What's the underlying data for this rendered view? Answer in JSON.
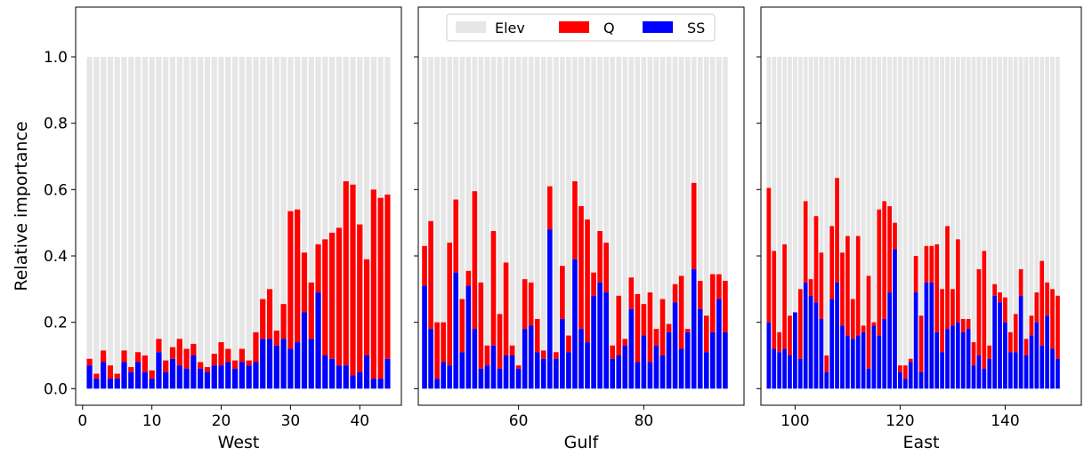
{
  "figure": {
    "ylabel": "Relative importance",
    "legend": [
      {
        "label": "Elev",
        "color": "#e6e6e6"
      },
      {
        "label": "Q",
        "color": "#ff0000"
      },
      {
        "label": "SS",
        "color": "#0000ff"
      }
    ],
    "legend_location": "top-center of middle panel"
  },
  "chart_data": [
    {
      "type": "bar",
      "stacked": true,
      "xlabel": "West",
      "ylabel": "Relative importance",
      "ylim": [
        -0.05,
        1.15
      ],
      "xlim": [
        -1,
        46
      ],
      "xticks": [
        0,
        10,
        20,
        30,
        40
      ],
      "yticks": [
        0.0,
        0.2,
        0.4,
        0.6,
        0.8,
        1.0
      ],
      "x_start": 1,
      "ss": [
        0.07,
        0.03,
        0.08,
        0.03,
        0.03,
        0.08,
        0.05,
        0.08,
        0.05,
        0.03,
        0.11,
        0.05,
        0.09,
        0.07,
        0.06,
        0.1,
        0.06,
        0.05,
        0.07,
        0.07,
        0.08,
        0.06,
        0.08,
        0.07,
        0.08,
        0.15,
        0.15,
        0.13,
        0.15,
        0.12,
        0.14,
        0.23,
        0.15,
        0.29,
        0.1,
        0.09,
        0.07,
        0.07,
        0.04,
        0.05,
        0.1,
        0.03,
        0.03,
        0.09
      ],
      "total": [
        0.09,
        0.045,
        0.115,
        0.07,
        0.045,
        0.115,
        0.065,
        0.11,
        0.1,
        0.055,
        0.15,
        0.085,
        0.125,
        0.15,
        0.12,
        0.135,
        0.08,
        0.065,
        0.105,
        0.14,
        0.12,
        0.085,
        0.12,
        0.085,
        0.17,
        0.27,
        0.3,
        0.175,
        0.255,
        0.535,
        0.54,
        0.41,
        0.32,
        0.435,
        0.45,
        0.47,
        0.485,
        0.625,
        0.615,
        0.495,
        0.39,
        0.6,
        0.575,
        0.585
      ],
      "elev": 1.0,
      "series": [
        {
          "name": "Elev",
          "color": "#e6e6e6"
        },
        {
          "name": "Q",
          "color": "#ff0000"
        },
        {
          "name": "SS",
          "color": "#0000ff"
        }
      ]
    },
    {
      "type": "bar",
      "stacked": true,
      "xlabel": "Gulf",
      "ylim": [
        -0.05,
        1.15
      ],
      "xlim": [
        44,
        96
      ],
      "xticks": [
        60,
        80
      ],
      "x_start": 45,
      "ss": [
        0.31,
        0.18,
        0.03,
        0.08,
        0.07,
        0.35,
        0.11,
        0.31,
        0.18,
        0.06,
        0.07,
        0.13,
        0.06,
        0.1,
        0.1,
        0.06,
        0.18,
        0.19,
        0.11,
        0.09,
        0.48,
        0.09,
        0.21,
        0.11,
        0.39,
        0.18,
        0.14,
        0.28,
        0.32,
        0.29,
        0.09,
        0.1,
        0.13,
        0.24,
        0.08,
        0.16,
        0.08,
        0.13,
        0.1,
        0.17,
        0.26,
        0.12,
        0.17,
        0.36,
        0.24,
        0.11,
        0.17,
        0.27,
        0.17
      ],
      "total": [
        0.43,
        0.505,
        0.2,
        0.2,
        0.44,
        0.57,
        0.27,
        0.355,
        0.595,
        0.32,
        0.13,
        0.475,
        0.225,
        0.38,
        0.13,
        0.07,
        0.33,
        0.32,
        0.21,
        0.115,
        0.61,
        0.11,
        0.37,
        0.16,
        0.625,
        0.55,
        0.51,
        0.35,
        0.475,
        0.44,
        0.13,
        0.28,
        0.15,
        0.335,
        0.285,
        0.255,
        0.29,
        0.18,
        0.27,
        0.195,
        0.315,
        0.34,
        0.18,
        0.62,
        0.325,
        0.22,
        0.345,
        0.345,
        0.325
      ],
      "elev": 1.0
    },
    {
      "type": "bar",
      "stacked": true,
      "xlabel": "East",
      "ylim": [
        -0.05,
        1.15
      ],
      "xlim": [
        93.5,
        154.5
      ],
      "xticks": [
        100,
        120,
        140
      ],
      "x_start": 95,
      "ss": [
        0.2,
        0.12,
        0.11,
        0.12,
        0.1,
        0.23,
        0.09,
        0.32,
        0.28,
        0.26,
        0.21,
        0.05,
        0.27,
        0.32,
        0.19,
        0.16,
        0.15,
        0.16,
        0.17,
        0.06,
        0.19,
        0.16,
        0.21,
        0.29,
        0.42,
        0.05,
        0.03,
        0.08,
        0.29,
        0.05,
        0.32,
        0.32,
        0.17,
        0.11,
        0.18,
        0.19,
        0.2,
        0.17,
        0.18,
        0.07,
        0.1,
        0.06,
        0.09,
        0.28,
        0.26,
        0.2,
        0.11,
        0.11,
        0.28,
        0.1,
        0.16,
        0.2,
        0.13,
        0.22,
        0.12,
        0.09
      ],
      "total": [
        0.605,
        0.415,
        0.17,
        0.435,
        0.22,
        0.225,
        0.3,
        0.565,
        0.33,
        0.52,
        0.41,
        0.1,
        0.49,
        0.635,
        0.41,
        0.46,
        0.27,
        0.46,
        0.19,
        0.34,
        0.2,
        0.54,
        0.565,
        0.55,
        0.5,
        0.07,
        0.07,
        0.09,
        0.4,
        0.22,
        0.43,
        0.43,
        0.435,
        0.3,
        0.49,
        0.3,
        0.45,
        0.21,
        0.21,
        0.14,
        0.36,
        0.415,
        0.13,
        0.315,
        0.29,
        0.275,
        0.17,
        0.225,
        0.36,
        0.15,
        0.22,
        0.29,
        0.385,
        0.32,
        0.3,
        0.28
      ],
      "elev": 1.0
    }
  ]
}
